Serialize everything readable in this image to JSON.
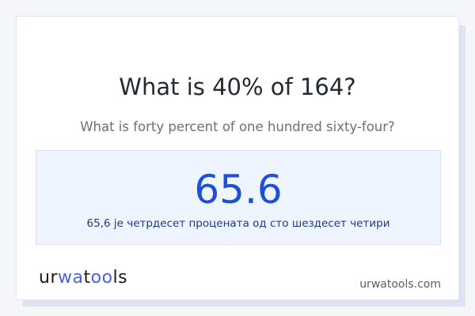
{
  "question": "What is 40% of 164?",
  "question_words": "What is forty percent of one hundred sixty-four?",
  "result": {
    "value": "65.6",
    "words": "65,6 је четрдесет процената од сто шездесет четири"
  },
  "logo": {
    "text": "urwatools",
    "part1": "ur",
    "part2": "wa",
    "part3": "t",
    "part4": "oo",
    "part5": "ls"
  },
  "site": "urwatools.com",
  "colors": {
    "accent": "#1e4fd8",
    "result_bg": "#eef5ff",
    "logo_accent": "#4a62e0"
  }
}
